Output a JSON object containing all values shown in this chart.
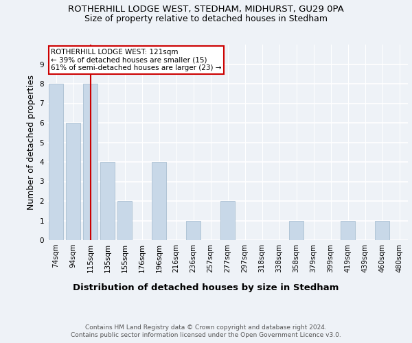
{
  "title_line1": "ROTHERHILL LODGE WEST, STEDHAM, MIDHURST, GU29 0PA",
  "title_line2": "Size of property relative to detached houses in Stedham",
  "xlabel": "Distribution of detached houses by size in Stedham",
  "ylabel": "Number of detached properties",
  "categories": [
    "74sqm",
    "94sqm",
    "115sqm",
    "135sqm",
    "155sqm",
    "176sqm",
    "196sqm",
    "216sqm",
    "236sqm",
    "257sqm",
    "277sqm",
    "297sqm",
    "318sqm",
    "338sqm",
    "358sqm",
    "379sqm",
    "399sqm",
    "419sqm",
    "439sqm",
    "460sqm",
    "480sqm"
  ],
  "values": [
    8,
    6,
    8,
    4,
    2,
    0,
    4,
    0,
    1,
    0,
    2,
    0,
    0,
    0,
    1,
    0,
    0,
    1,
    0,
    1,
    0
  ],
  "bar_color": "#c8d8e8",
  "bar_edge_color": "#a0b8cc",
  "vline_x": 2,
  "vline_color": "#cc0000",
  "ylim": [
    0,
    10
  ],
  "yticks": [
    0,
    1,
    2,
    3,
    4,
    5,
    6,
    7,
    8,
    9
  ],
  "annotation_text": "ROTHERHILL LODGE WEST: 121sqm\n← 39% of detached houses are smaller (15)\n61% of semi-detached houses are larger (23) →",
  "annotation_box_color": "#ffffff",
  "annotation_box_edge": "#cc0000",
  "footer_line1": "Contains HM Land Registry data © Crown copyright and database right 2024.",
  "footer_line2": "Contains public sector information licensed under the Open Government Licence v3.0.",
  "background_color": "#eef2f7",
  "grid_color": "#ffffff",
  "title1_fontsize": 9.5,
  "title2_fontsize": 9,
  "axis_label_fontsize": 9,
  "tick_fontsize": 7.5,
  "footer_fontsize": 6.5,
  "annotation_fontsize": 7.5
}
